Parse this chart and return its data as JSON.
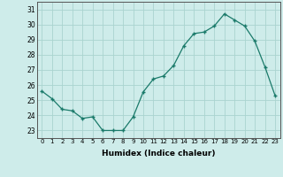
{
  "x": [
    0,
    1,
    2,
    3,
    4,
    5,
    6,
    7,
    8,
    9,
    10,
    11,
    12,
    13,
    14,
    15,
    16,
    17,
    18,
    19,
    20,
    21,
    22,
    23
  ],
  "y": [
    25.6,
    25.1,
    24.4,
    24.3,
    23.8,
    23.9,
    23.0,
    23.0,
    23.0,
    23.9,
    25.55,
    26.4,
    26.6,
    27.3,
    28.6,
    29.4,
    29.5,
    29.9,
    30.7,
    30.3,
    29.9,
    28.9,
    27.2,
    25.3
  ],
  "line_color": "#1a7a6a",
  "marker_color": "#1a7a6a",
  "bg_color": "#ceecea",
  "grid_color": "#aad4cf",
  "xlabel": "Humidex (Indice chaleur)",
  "ylabel_ticks": [
    23,
    24,
    25,
    26,
    27,
    28,
    29,
    30,
    31
  ],
  "xlim": [
    -0.5,
    23.5
  ],
  "ylim": [
    22.5,
    31.5
  ]
}
